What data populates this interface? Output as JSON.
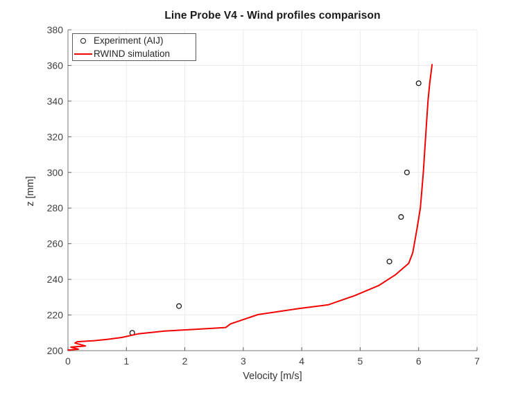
{
  "figure": {
    "background": "#ffffff"
  },
  "chart_data": {
    "type": "line",
    "title": "Line Probe V4 - Wind profiles comparison",
    "xlabel": "Velocity [m/s]",
    "ylabel": "z [mm]",
    "xlim": [
      0,
      7
    ],
    "ylim": [
      200,
      380
    ],
    "xticks": [
      0,
      1,
      2,
      3,
      4,
      5,
      6,
      7
    ],
    "yticks": [
      200,
      220,
      240,
      260,
      280,
      300,
      320,
      340,
      360,
      380
    ],
    "grid": true,
    "legend_position": "top-left",
    "series": [
      {
        "name": "Experiment (AIJ)",
        "type": "scatter",
        "marker": "open-circle",
        "color": "#1a1a1a",
        "points": [
          [
            1.1,
            210
          ],
          [
            1.9,
            225
          ],
          [
            5.5,
            250
          ],
          [
            5.7,
            275
          ],
          [
            5.8,
            300
          ],
          [
            6.0,
            350
          ]
        ]
      },
      {
        "name": "RWIND simulation",
        "type": "line",
        "color": "#f40000",
        "points": [
          [
            0.0,
            200.3
          ],
          [
            0.18,
            200.8
          ],
          [
            0.05,
            202.0
          ],
          [
            0.3,
            202.6
          ],
          [
            0.12,
            204.3
          ],
          [
            0.16,
            205.0
          ],
          [
            0.45,
            205.6
          ],
          [
            0.67,
            206.3
          ],
          [
            0.92,
            207.4
          ],
          [
            1.2,
            209.4
          ],
          [
            1.65,
            211.0
          ],
          [
            2.15,
            211.9
          ],
          [
            2.7,
            213.0
          ],
          [
            2.78,
            215.0
          ],
          [
            3.25,
            220.2
          ],
          [
            3.95,
            223.6
          ],
          [
            4.45,
            225.7
          ],
          [
            4.9,
            230.8
          ],
          [
            5.32,
            236.6
          ],
          [
            5.6,
            242.5
          ],
          [
            5.83,
            249.0
          ],
          [
            5.9,
            255.0
          ],
          [
            5.97,
            268.0
          ],
          [
            6.03,
            280.0
          ],
          [
            6.08,
            300.0
          ],
          [
            6.12,
            320.0
          ],
          [
            6.16,
            340.0
          ],
          [
            6.19,
            350.0
          ],
          [
            6.23,
            360.5
          ]
        ]
      }
    ],
    "colors": {
      "grid": "#ebebeb",
      "spine": "#909090",
      "tick_mark": "#606060",
      "tick_text": "#404040",
      "title_text": "#1a1a1a",
      "axis_label_text": "#333333",
      "legend_border": "#5a5a5a"
    }
  }
}
